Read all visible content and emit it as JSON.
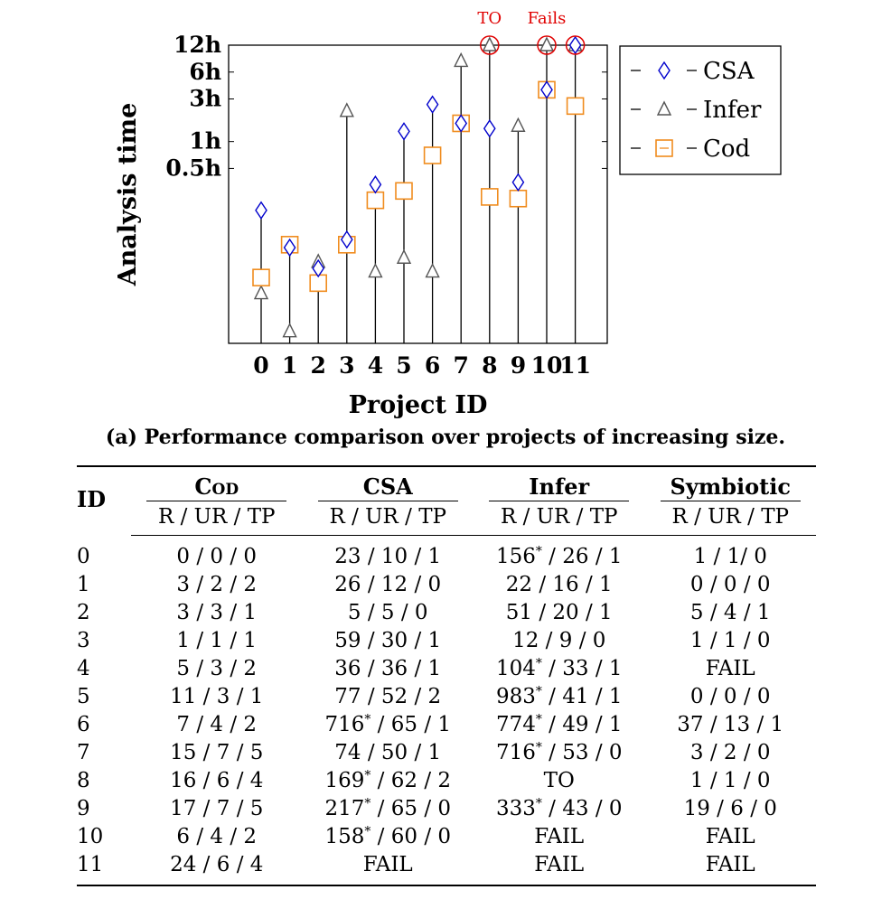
{
  "chart_data": {
    "type": "scatter",
    "xlabel": "Project ID",
    "ylabel": "Analysis time",
    "x": [
      0,
      1,
      2,
      3,
      4,
      5,
      6,
      7,
      8,
      9,
      10,
      11
    ],
    "yticks": [
      "12h",
      "6h",
      "3h",
      "1h",
      "0.5h"
    ],
    "xticks": [
      "0",
      "1",
      "2",
      "3",
      "4",
      "5",
      "6",
      "7",
      "8",
      "9",
      "10",
      "11"
    ],
    "ylim_hours": [
      0.0055,
      12
    ],
    "yscale": "log",
    "series": [
      {
        "name": "CSA",
        "marker": "diamond",
        "color": "#0000cc",
        "values": [
          0.17,
          0.065,
          0.038,
          0.08,
          0.33,
          1.3,
          2.6,
          1.6,
          1.4,
          0.35,
          3.8,
          12
        ]
      },
      {
        "name": "Infer",
        "marker": "triangle",
        "color": "#555555",
        "values": [
          0.02,
          0.0075,
          0.045,
          2.2,
          0.035,
          0.05,
          0.035,
          8,
          12,
          1.5,
          12,
          12
        ]
      },
      {
        "name": "Cod",
        "marker": "square",
        "color": "#f08c1e",
        "values": [
          0.03,
          0.07,
          0.026,
          0.07,
          0.22,
          0.28,
          0.7,
          1.6,
          0.24,
          0.23,
          3.8,
          2.5
        ]
      }
    ],
    "annotations": [
      {
        "label": "TO",
        "x": 8
      },
      {
        "label": "Fails",
        "x": 10
      }
    ],
    "annotation_circles_x": [
      8,
      10,
      11
    ],
    "legend_position": "right-outside-top"
  },
  "caption": "(a) Performance comparison over projects of increasing size.",
  "table": {
    "id_header": "ID",
    "groups": [
      "Cod",
      "CSA",
      "Infer",
      "Symbiotic"
    ],
    "subheader": "R / UR / TP",
    "rows": [
      [
        "0",
        "0 / 0 / 0",
        "23 / 10 / 1",
        "156* / 26 / 1",
        "1 / 1/ 0"
      ],
      [
        "1",
        "3 / 2 / 2",
        "26 / 12 / 0",
        "22 / 16 / 1",
        "0 / 0 / 0"
      ],
      [
        "2",
        "3 / 3 / 1",
        "5 / 5 / 0",
        "51 / 20 / 1",
        "5 / 4 / 1"
      ],
      [
        "3",
        "1 / 1 / 1",
        "59 / 30 / 1",
        "12 / 9 / 0",
        "1 / 1 / 0"
      ],
      [
        "4",
        "5 / 3 / 2",
        "36 / 36 / 1",
        "104* / 33 / 1",
        "FAIL"
      ],
      [
        "5",
        "11 / 3 / 1",
        "77 / 52 / 2",
        "983* / 41 / 1",
        "0 / 0 / 0"
      ],
      [
        "6",
        "7 / 4 / 2",
        "716* / 65 / 1",
        "774* / 49 / 1",
        "37 / 13 / 1"
      ],
      [
        "7",
        "15 / 7 / 5",
        "74 / 50 / 1",
        "716* / 53 / 0",
        "3 / 2 / 0"
      ],
      [
        "8",
        "16 / 6 / 4",
        "169* / 62 / 2",
        "TO",
        "1 / 1 / 0"
      ],
      [
        "9",
        "17 / 7 / 5",
        "217* / 65 / 0",
        "333* / 43 / 0",
        "19 / 6 / 0"
      ],
      [
        "10",
        "6 / 4 / 2",
        "158* / 60 / 0",
        "FAIL",
        "FAIL"
      ],
      [
        "11",
        "24 / 6 / 4",
        "FAIL",
        "FAIL",
        "FAIL"
      ]
    ]
  }
}
